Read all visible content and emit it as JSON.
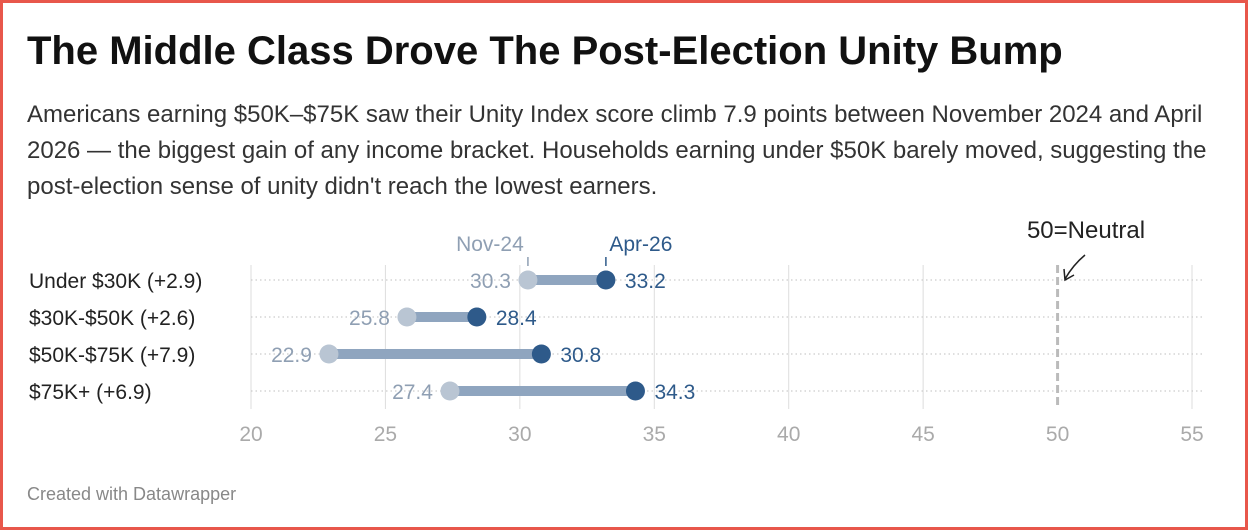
{
  "header": {
    "title": "The Middle Class Drove The Post-Election Unity Bump",
    "subtitle": "Americans earning $50K–$75K saw their Unity Index score climb 7.9 points between November 2024 and April 2026 — the biggest gain of any income bracket. Households earning under $50K barely moved, suggesting the post-election sense of unity didn't reach the lowest earners."
  },
  "footer": {
    "credit": "Created with Datawrapper"
  },
  "colors": {
    "nov": "#b9c5d3",
    "apr": "#2e5a8a",
    "range_bar": "#8fa5bf",
    "nov_text": "#8f9fb3",
    "axis_text": "#aaaaaa",
    "grid": "#dddddd",
    "neutral_line": "#bbbbbb",
    "border": "#e8574b"
  },
  "chart_data": {
    "type": "range_dot",
    "series": [
      {
        "name": "Nov-24",
        "values": [
          30.3,
          25.8,
          22.9,
          27.4
        ]
      },
      {
        "name": "Apr-26",
        "values": [
          33.2,
          28.4,
          30.8,
          34.3
        ]
      }
    ],
    "categories": [
      "Under $30K (+2.9)",
      "$30K-$50K (+2.6)",
      "$50K-$75K (+7.9)",
      "$75K+ (+6.9)"
    ],
    "xlim": [
      20,
      55
    ],
    "x_ticks": [
      20,
      25,
      30,
      35,
      40,
      45,
      50,
      55
    ],
    "reference_line": {
      "value": 50,
      "label": "50=Neutral"
    },
    "value_labels_nov": [
      "30.3",
      "25.8",
      "22.9",
      "27.4"
    ],
    "value_labels_apr": [
      "33.2",
      "28.4",
      "30.8",
      "34.3"
    ]
  }
}
